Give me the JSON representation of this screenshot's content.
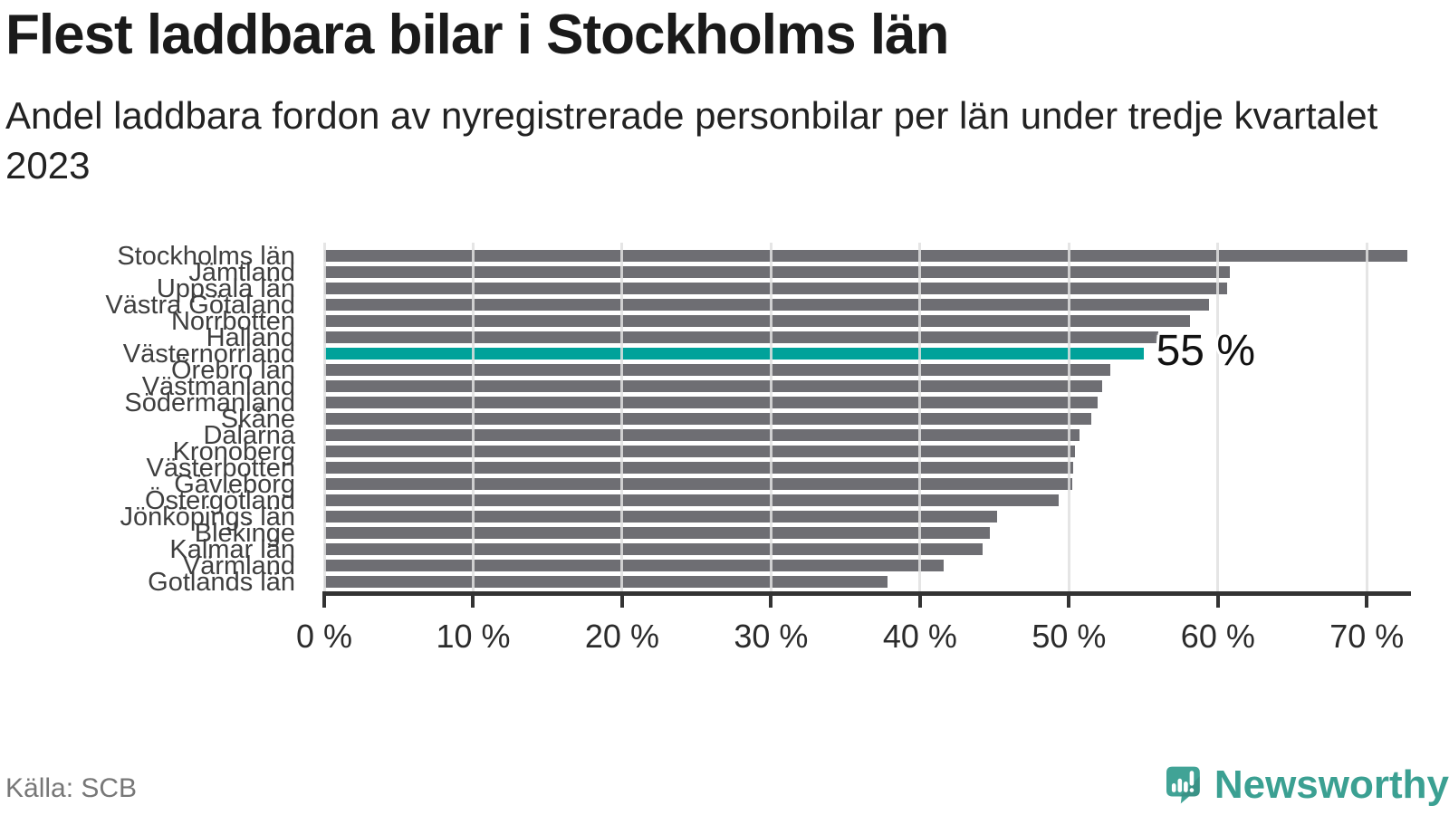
{
  "header": {
    "title": "Flest laddbara bilar i Stockholms län",
    "subtitle": "Andel laddbara fordon av nyregistrerade personbilar per län under tredje kvartalet 2023"
  },
  "footer": {
    "source": "Källa: SCB",
    "brand": "Newsworthy"
  },
  "colors": {
    "bar": "#6e6e73",
    "highlight": "#00a29a",
    "gridline": "#e0e0e0",
    "axis": "#333333",
    "brand_teal": "#3ba092"
  },
  "chart_data": {
    "type": "bar",
    "orientation": "horizontal",
    "title": "Flest laddbara bilar i Stockholms län",
    "subtitle": "Andel laddbara fordon av nyregistrerade personbilar per län under tredje kvartalet 2023",
    "unit": "%",
    "categories": [
      "Stockholms län",
      "Jämtland",
      "Uppsala län",
      "Västra Götaland",
      "Norrbotten",
      "Halland",
      "Västernorrland",
      "Örebro län",
      "Västmanland",
      "Södermanland",
      "Skåne",
      "Dalarna",
      "Kronoberg",
      "Västerbotten",
      "Gävleborg",
      "Östergötland",
      "Jönköpings län",
      "Blekinge",
      "Kalmar län",
      "Värmland",
      "Gotlands län"
    ],
    "values": [
      72.7,
      60.8,
      60.6,
      59.4,
      58.1,
      56.0,
      55.0,
      52.8,
      52.2,
      51.9,
      51.5,
      50.7,
      50.4,
      50.3,
      50.2,
      49.3,
      45.2,
      44.7,
      44.2,
      41.6,
      37.8
    ],
    "highlight": {
      "category": "Västernorrland",
      "index": 6,
      "value": 55,
      "label": "55 %"
    },
    "x_ticks": [
      0,
      10,
      20,
      30,
      40,
      50,
      60,
      70
    ],
    "x_tick_labels": [
      "0 %",
      "10 %",
      "20 %",
      "30 %",
      "40 %",
      "50 %",
      "60 %",
      "70 %"
    ],
    "xlim": [
      0,
      72.9
    ],
    "grid": true,
    "legend": false,
    "source": "Källa: SCB"
  }
}
